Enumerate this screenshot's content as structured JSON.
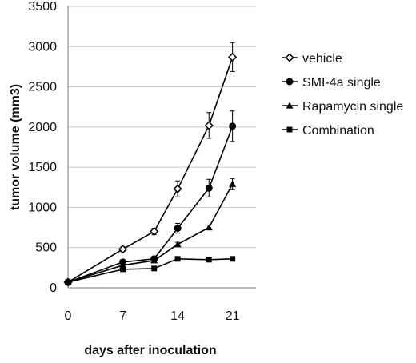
{
  "chart_data": {
    "type": "line",
    "title": "",
    "xlabel": "days after inoculation",
    "ylabel": "tumor volume (mm3)",
    "x": [
      0,
      7,
      11,
      14,
      18,
      21
    ],
    "xticks": [
      0,
      7,
      14,
      21
    ],
    "xlim": [
      0,
      24
    ],
    "yticks": [
      0,
      500,
      1000,
      1500,
      2000,
      2500,
      3000,
      3500
    ],
    "ylim": [
      0,
      3500
    ],
    "grid": "horizontal",
    "legend_position": "right",
    "series": [
      {
        "name": "vehicle",
        "marker": "open-diamond",
        "values": [
          70,
          480,
          700,
          1230,
          2020,
          2870
        ],
        "errors": [
          20,
          30,
          40,
          100,
          160,
          180
        ]
      },
      {
        "name": "SMI-4a single",
        "marker": "filled-circle",
        "values": [
          70,
          320,
          360,
          740,
          1240,
          2010
        ],
        "errors": [
          15,
          20,
          25,
          60,
          110,
          190
        ]
      },
      {
        "name": "Rapamycin single",
        "marker": "filled-triangle",
        "values": [
          70,
          280,
          340,
          540,
          750,
          1290
        ],
        "errors": [
          15,
          15,
          20,
          25,
          30,
          70
        ]
      },
      {
        "name": "Combination",
        "marker": "filled-square",
        "values": [
          70,
          230,
          240,
          360,
          350,
          360
        ],
        "errors": [
          10,
          10,
          10,
          10,
          10,
          10
        ]
      }
    ]
  }
}
